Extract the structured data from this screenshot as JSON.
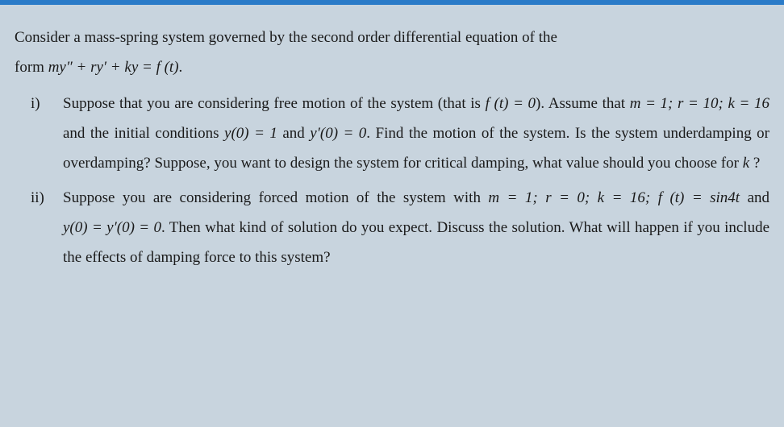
{
  "colors": {
    "background": "#c8d4de",
    "topbar": "#2a7bc8",
    "text": "#1a1a1a"
  },
  "typography": {
    "font_family": "Times New Roman",
    "font_size_pt": 15,
    "line_height": 1.95,
    "align": "justify"
  },
  "intro": {
    "line1_a": "Consider a mass-spring system governed by the second order differential equation of the",
    "line2_a": "form ",
    "eq1": "my″ + ry′ + ky = f (t)",
    "period": "."
  },
  "items": [
    {
      "marker": "i)",
      "p1_a": "Suppose that you are considering free motion of the system (that is ",
      "p1_eq1": "f (t) = 0",
      "p1_b": ").",
      "p2_a": "Assume that ",
      "p2_eq1": "m = 1; r = 10; k = 16",
      "p2_b": " and the initial conditions ",
      "p2_eq2": "y(0) = 1",
      "p2_c": " and ",
      "p2_eq3": "y′(0) = 0",
      "p2_d": ".",
      "p3": "Find the motion of the system. Is the system underdamping or overdamping?",
      "p4": "Suppose, you want to design the system for critical damping, what value should",
      "p5_a": "you choose for ",
      "p5_eq1": "k",
      "p5_b": " ?"
    },
    {
      "marker": "ii)",
      "p1_a": "Suppose you are considering forced motion of the system with ",
      "p1_eq1": "m = 1; r = 0; k = 16;",
      "p2_eq1": "f (t) = sin4t",
      "p2_a": " and ",
      "p2_eq2": "y(0) = y′(0) = 0",
      "p2_b": ". Then what kind of solution do you expect.",
      "p3": "Discuss the solution. What will happen if you include the effects of damping force",
      "p4": "to this system?"
    }
  ]
}
